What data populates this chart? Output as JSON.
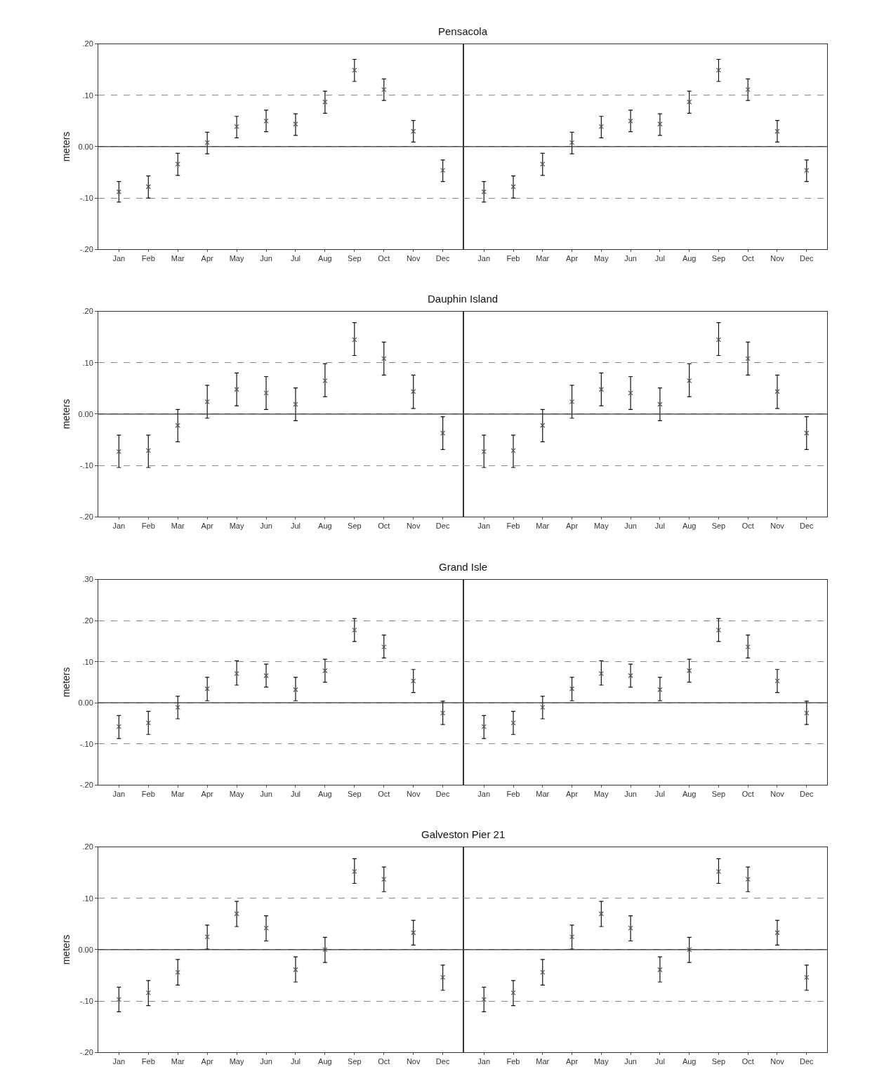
{
  "chart_data": [
    {
      "type": "scatter",
      "title": "Pensacola",
      "ylabel": "meters",
      "categories": [
        "Jan",
        "Feb",
        "Mar",
        "Apr",
        "May",
        "Jun",
        "Jul",
        "Aug",
        "Sep",
        "Oct",
        "Nov",
        "Dec"
      ],
      "color": "#555555",
      "marker": "cross",
      "values": [
        -0.088,
        -0.078,
        -0.034,
        0.008,
        0.039,
        0.05,
        0.044,
        0.087,
        0.149,
        0.111,
        0.03,
        -0.046
      ],
      "errors": [
        [
          -0.108,
          -0.068
        ],
        [
          -0.1,
          -0.057
        ],
        [
          -0.056,
          -0.013
        ],
        [
          -0.014,
          0.028
        ],
        [
          0.017,
          0.059
        ],
        [
          0.029,
          0.071
        ],
        [
          0.022,
          0.064
        ],
        [
          0.065,
          0.108
        ],
        [
          0.127,
          0.17
        ],
        [
          0.09,
          0.132
        ],
        [
          0.009,
          0.051
        ],
        [
          -0.068,
          -0.026
        ]
      ],
      "ylim": [
        -0.2,
        0.2
      ],
      "yticks": [
        {
          "value": -0.2,
          "label": "-.20"
        },
        {
          "value": -0.1,
          "label": "-.10"
        },
        {
          "value": 0,
          "label": "0.00"
        },
        {
          "value": 0.1,
          "label": ".10"
        },
        {
          "value": 0.2,
          "label": ".20"
        }
      ],
      "grid": "y",
      "ref_lines": [
        {
          "axis": "y",
          "value": 0,
          "color": "#333333",
          "line_style": "solid"
        }
      ]
    },
    {
      "type": "scatter",
      "categories": [
        "Jan",
        "Feb",
        "Mar",
        "Apr",
        "May",
        "Jun",
        "Jul",
        "Aug",
        "Sep",
        "Oct",
        "Nov",
        "Dec"
      ],
      "color": "#555555",
      "marker": "cross",
      "values": [
        -0.088,
        -0.078,
        -0.034,
        0.008,
        0.039,
        0.05,
        0.044,
        0.087,
        0.149,
        0.111,
        0.03,
        -0.046
      ],
      "errors": [
        [
          -0.108,
          -0.068
        ],
        [
          -0.1,
          -0.057
        ],
        [
          -0.056,
          -0.013
        ],
        [
          -0.014,
          0.028
        ],
        [
          0.017,
          0.059
        ],
        [
          0.029,
          0.071
        ],
        [
          0.022,
          0.064
        ],
        [
          0.065,
          0.108
        ],
        [
          0.127,
          0.17
        ],
        [
          0.09,
          0.132
        ],
        [
          0.009,
          0.051
        ],
        [
          -0.068,
          -0.026
        ]
      ],
      "ylim": [
        -0.2,
        0.2
      ],
      "yticks": [
        -0.2,
        -0.1,
        0,
        0.1,
        0.2
      ],
      "grid": "y",
      "tick_labels": "x",
      "ref_lines": [
        {
          "axis": "y",
          "value": 0,
          "color": "#333333",
          "line_style": "solid"
        }
      ]
    },
    {
      "type": "scatter",
      "title": "Dauphin Island",
      "ylabel": "meters",
      "categories": [
        "Jan",
        "Feb",
        "Mar",
        "Apr",
        "May",
        "Jun",
        "Jul",
        "Aug",
        "Sep",
        "Oct",
        "Nov",
        "Dec"
      ],
      "color": "#555555",
      "marker": "cross",
      "values": [
        -0.073,
        -0.071,
        -0.022,
        0.024,
        0.048,
        0.041,
        0.019,
        0.065,
        0.145,
        0.108,
        0.044,
        -0.037
      ],
      "errors": [
        [
          -0.104,
          -0.041
        ],
        [
          -0.104,
          -0.041
        ],
        [
          -0.054,
          0.009
        ],
        [
          -0.008,
          0.056
        ],
        [
          0.016,
          0.08
        ],
        [
          0.009,
          0.073
        ],
        [
          -0.013,
          0.051
        ],
        [
          0.034,
          0.098
        ],
        [
          0.114,
          0.178
        ],
        [
          0.076,
          0.14
        ],
        [
          0.011,
          0.076
        ],
        [
          -0.069,
          -0.005
        ]
      ],
      "ylim": [
        -0.2,
        0.2
      ],
      "yticks": [
        {
          "value": -0.2,
          "label": "-.20"
        },
        {
          "value": -0.1,
          "label": "-.10"
        },
        {
          "value": 0,
          "label": "0.00"
        },
        {
          "value": 0.1,
          "label": ".10"
        },
        {
          "value": 0.2,
          "label": ".20"
        }
      ],
      "grid": "y",
      "ref_lines": [
        {
          "axis": "y",
          "value": 0,
          "color": "#333333",
          "line_style": "solid"
        }
      ]
    },
    {
      "type": "scatter",
      "categories": [
        "Jan",
        "Feb",
        "Mar",
        "Apr",
        "May",
        "Jun",
        "Jul",
        "Aug",
        "Sep",
        "Oct",
        "Nov",
        "Dec"
      ],
      "color": "#555555",
      "marker": "cross",
      "values": [
        -0.073,
        -0.071,
        -0.022,
        0.024,
        0.048,
        0.041,
        0.019,
        0.065,
        0.145,
        0.108,
        0.044,
        -0.037
      ],
      "errors": [
        [
          -0.104,
          -0.041
        ],
        [
          -0.104,
          -0.041
        ],
        [
          -0.054,
          0.009
        ],
        [
          -0.008,
          0.056
        ],
        [
          0.016,
          0.08
        ],
        [
          0.009,
          0.073
        ],
        [
          -0.013,
          0.051
        ],
        [
          0.034,
          0.098
        ],
        [
          0.114,
          0.178
        ],
        [
          0.076,
          0.14
        ],
        [
          0.011,
          0.076
        ],
        [
          -0.069,
          -0.005
        ]
      ],
      "ylim": [
        -0.2,
        0.2
      ],
      "yticks": [
        -0.2,
        -0.1,
        0,
        0.1,
        0.2
      ],
      "grid": "y",
      "tick_labels": "x",
      "ref_lines": [
        {
          "axis": "y",
          "value": 0,
          "color": "#333333",
          "line_style": "solid"
        }
      ]
    },
    {
      "type": "scatter",
      "title": "Grand Isle",
      "ylabel": "meters",
      "categories": [
        "Jan",
        "Feb",
        "Mar",
        "Apr",
        "May",
        "Jun",
        "Jul",
        "Aug",
        "Sep",
        "Oct",
        "Nov",
        "Dec"
      ],
      "color": "#555555",
      "marker": "cross",
      "values": [
        -0.058,
        -0.049,
        -0.011,
        0.034,
        0.071,
        0.066,
        0.032,
        0.078,
        0.177,
        0.136,
        0.053,
        -0.025
      ],
      "errors": [
        [
          -0.087,
          -0.031
        ],
        [
          -0.077,
          -0.021
        ],
        [
          -0.039,
          0.016
        ],
        [
          0.005,
          0.062
        ],
        [
          0.043,
          0.102
        ],
        [
          0.038,
          0.094
        ],
        [
          0.005,
          0.062
        ],
        [
          0.05,
          0.106
        ],
        [
          0.149,
          0.205
        ],
        [
          0.109,
          0.165
        ],
        [
          0.025,
          0.081
        ],
        [
          -0.053,
          0.004
        ]
      ],
      "ylim": [
        -0.2,
        0.3
      ],
      "yticks": [
        {
          "value": -0.2,
          "label": "-.20"
        },
        {
          "value": -0.1,
          "label": "-.10"
        },
        {
          "value": 0,
          "label": "0.00"
        },
        {
          "value": 0.1,
          "label": ".10"
        },
        {
          "value": 0.2,
          "label": ".20"
        },
        {
          "value": 0.3,
          "label": ".30"
        }
      ],
      "grid": "y",
      "ref_lines": [
        {
          "axis": "y",
          "value": 0,
          "color": "#333333",
          "line_style": "solid"
        }
      ]
    },
    {
      "type": "scatter",
      "categories": [
        "Jan",
        "Feb",
        "Mar",
        "Apr",
        "May",
        "Jun",
        "Jul",
        "Aug",
        "Sep",
        "Oct",
        "Nov",
        "Dec"
      ],
      "color": "#555555",
      "marker": "cross",
      "values": [
        -0.058,
        -0.049,
        -0.011,
        0.034,
        0.071,
        0.066,
        0.032,
        0.078,
        0.177,
        0.136,
        0.053,
        -0.025
      ],
      "errors": [
        [
          -0.087,
          -0.031
        ],
        [
          -0.077,
          -0.021
        ],
        [
          -0.039,
          0.016
        ],
        [
          0.005,
          0.062
        ],
        [
          0.043,
          0.102
        ],
        [
          0.038,
          0.094
        ],
        [
          0.005,
          0.062
        ],
        [
          0.05,
          0.106
        ],
        [
          0.149,
          0.205
        ],
        [
          0.109,
          0.165
        ],
        [
          0.025,
          0.081
        ],
        [
          -0.053,
          0.004
        ]
      ],
      "ylim": [
        -0.2,
        0.3
      ],
      "yticks": [
        -0.2,
        -0.1,
        0,
        0.1,
        0.2,
        0.3
      ],
      "grid": "y",
      "tick_labels": "x",
      "ref_lines": [
        {
          "axis": "y",
          "value": 0,
          "color": "#333333",
          "line_style": "solid"
        }
      ]
    },
    {
      "type": "scatter",
      "title": "Galveston Pier 21",
      "ylabel": "meters",
      "categories": [
        "Jan",
        "Feb",
        "Mar",
        "Apr",
        "May",
        "Jun",
        "Jul",
        "Aug",
        "Sep",
        "Oct",
        "Nov",
        "Dec"
      ],
      "color": "#555555",
      "marker": "cross",
      "values": [
        -0.097,
        -0.084,
        -0.044,
        0.025,
        0.07,
        0.042,
        -0.039,
        0.0,
        0.152,
        0.137,
        0.033,
        -0.054
      ],
      "errors": [
        [
          -0.121,
          -0.073
        ],
        [
          -0.109,
          -0.06
        ],
        [
          -0.069,
          -0.019
        ],
        [
          0.001,
          0.048
        ],
        [
          0.045,
          0.094
        ],
        [
          0.017,
          0.066
        ],
        [
          -0.063,
          -0.014
        ],
        [
          -0.025,
          0.024
        ],
        [
          0.129,
          0.177
        ],
        [
          0.113,
          0.161
        ],
        [
          0.009,
          0.057
        ],
        [
          -0.079,
          -0.03
        ]
      ],
      "ylim": [
        -0.2,
        0.2
      ],
      "yticks": [
        {
          "value": -0.2,
          "label": "-.20"
        },
        {
          "value": -0.1,
          "label": "-.10"
        },
        {
          "value": 0,
          "label": "0.00"
        },
        {
          "value": 0.1,
          "label": ".10"
        },
        {
          "value": 0.2,
          "label": ".20"
        }
      ],
      "grid": "y",
      "ref_lines": [
        {
          "axis": "y",
          "value": 0,
          "color": "#333333",
          "line_style": "solid"
        }
      ]
    },
    {
      "type": "scatter",
      "categories": [
        "Jan",
        "Feb",
        "Mar",
        "Apr",
        "May",
        "Jun",
        "Jul",
        "Aug",
        "Sep",
        "Oct",
        "Nov",
        "Dec"
      ],
      "color": "#555555",
      "marker": "cross",
      "values": [
        -0.097,
        -0.084,
        -0.044,
        0.025,
        0.07,
        0.042,
        -0.039,
        0.0,
        0.152,
        0.137,
        0.033,
        -0.054
      ],
      "errors": [
        [
          -0.121,
          -0.073
        ],
        [
          -0.109,
          -0.06
        ],
        [
          -0.069,
          -0.019
        ],
        [
          0.001,
          0.048
        ],
        [
          0.045,
          0.094
        ],
        [
          0.017,
          0.066
        ],
        [
          -0.063,
          -0.014
        ],
        [
          -0.025,
          0.024
        ],
        [
          0.129,
          0.177
        ],
        [
          0.113,
          0.161
        ],
        [
          0.009,
          0.057
        ],
        [
          -0.079,
          -0.03
        ]
      ],
      "ylim": [
        -0.2,
        0.2
      ],
      "yticks": [
        -0.2,
        -0.1,
        0,
        0.1,
        0.2
      ],
      "grid": "y",
      "tick_labels": "x",
      "ref_lines": [
        {
          "axis": "y",
          "value": 0,
          "color": "#333333",
          "line_style": "solid"
        }
      ]
    }
  ]
}
